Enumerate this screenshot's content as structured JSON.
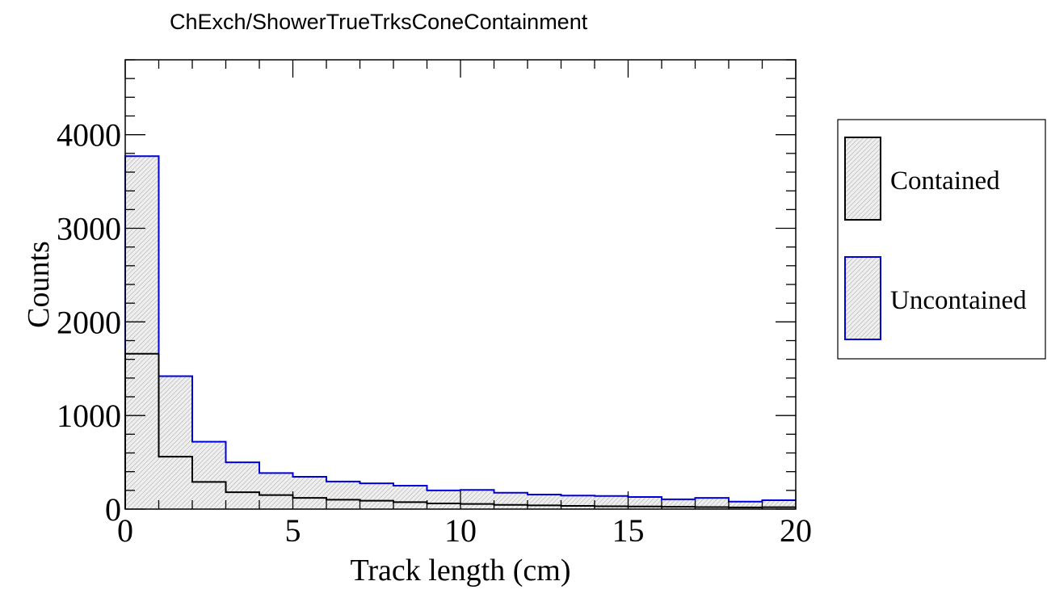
{
  "chart_data": {
    "type": "histogram",
    "title": "ChExch/ShowerTrueTrksConeContainment",
    "xlabel": "Track length (cm)",
    "ylabel": "Counts",
    "xlim": [
      0,
      20
    ],
    "ylim": [
      0,
      4800
    ],
    "xticks": [
      "0",
      "5",
      "10",
      "15",
      "20"
    ],
    "yticks": [
      "0",
      "1000",
      "2000",
      "3000",
      "4000"
    ],
    "stacked": true,
    "bin_edges": [
      0,
      1,
      2,
      3,
      4,
      5,
      6,
      7,
      8,
      9,
      10,
      11,
      12,
      13,
      14,
      15,
      16,
      17,
      18,
      19,
      20
    ],
    "series": [
      {
        "name": "Contained",
        "color": "#000000",
        "fill": "hatched-gray",
        "values": [
          1660,
          560,
          290,
          180,
          150,
          120,
          100,
          90,
          75,
          60,
          55,
          45,
          40,
          35,
          30,
          28,
          25,
          22,
          18,
          20
        ]
      },
      {
        "name": "Uncontained",
        "color": "#0000dd",
        "fill": "hatched-gray",
        "values": [
          2110,
          860,
          430,
          320,
          235,
          225,
          195,
          185,
          175,
          140,
          150,
          130,
          115,
          110,
          110,
          102,
          80,
          98,
          62,
          75
        ]
      }
    ],
    "legend": {
      "position": "right",
      "entries": [
        "Contained",
        "Uncontained"
      ]
    },
    "grid": false
  }
}
